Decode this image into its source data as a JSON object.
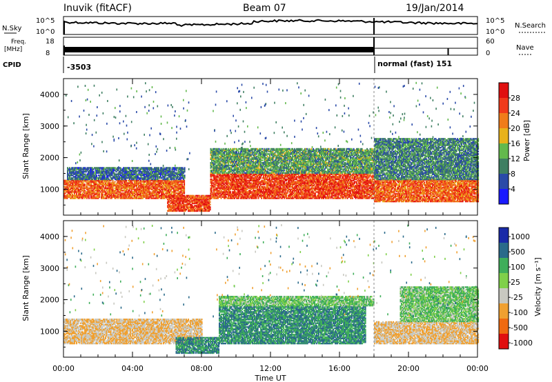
{
  "header": {
    "station": "Inuvik (fitACF)",
    "beam": "Beam 07",
    "date": "19/Jan/2014"
  },
  "top_panels": {
    "nsky_label": "N.Sky",
    "nsky_ticks": [
      "10^5",
      "10^0"
    ],
    "nsearch_label": "N.Search",
    "nsearch_ticks": [
      "10^5",
      "10^0"
    ],
    "freq_label_line1": "Freq.",
    "freq_label_line2": "[MHz]",
    "freq_ticks": [
      "18",
      "8"
    ],
    "nave_label": "Nave",
    "nave_ticks": [
      "60",
      "0"
    ],
    "cpid_label": "CPID",
    "cpid_left": "-3503",
    "cpid_right": "normal (fast) 151"
  },
  "x_axis": {
    "label": "Time UT",
    "ticks": [
      "00:00",
      "04:00",
      "08:00",
      "12:00",
      "16:00",
      "20:00",
      "00:00"
    ]
  },
  "chart_data": [
    {
      "type": "heatmap",
      "panel": "power",
      "ylabel": "Slant Range [km]",
      "y_ticks": [
        "1000",
        "2000",
        "3000",
        "4000"
      ],
      "ylim": [
        180,
        4500
      ],
      "xlim_hours": [
        0,
        24
      ],
      "colorbar_label": "Power [dB]",
      "colorbar_ticks": [
        "4",
        "8",
        "12",
        "16",
        "20",
        "24",
        "28"
      ],
      "colorbar_range": [
        0,
        32
      ],
      "colors": [
        "#1a1aff",
        "#2a4aa8",
        "#3f7f62",
        "#63b94d",
        "#e8b21a",
        "#f07c1a",
        "#f03a1a",
        "#e01010"
      ],
      "bands": [
        {
          "t0": 0.0,
          "t1": 7.0,
          "r0": 700,
          "r1": 1300,
          "value": 24
        },
        {
          "t0": 0.2,
          "t1": 7.0,
          "r0": 1300,
          "r1": 1700,
          "value": 8
        },
        {
          "t0": 6.0,
          "t1": 8.5,
          "r0": 300,
          "r1": 800,
          "value": 26
        },
        {
          "t0": 8.5,
          "t1": 18.0,
          "r0": 700,
          "r1": 1500,
          "value": 26
        },
        {
          "t0": 8.5,
          "t1": 18.0,
          "r0": 1500,
          "r1": 2300,
          "value": 12
        },
        {
          "t0": 18.0,
          "t1": 24.0,
          "r0": 600,
          "r1": 1300,
          "value": 24
        },
        {
          "t0": 18.0,
          "t1": 24.0,
          "r0": 1300,
          "r1": 2600,
          "value": 10
        }
      ]
    },
    {
      "type": "heatmap",
      "panel": "velocity",
      "ylabel": "Slant Range [km]",
      "y_ticks": [
        "1000",
        "2000",
        "3000",
        "4000"
      ],
      "ylim": [
        180,
        4500
      ],
      "xlim_hours": [
        0,
        24
      ],
      "colorbar_label": "Velocity [m s⁻¹]",
      "colorbar_ticks": [
        "1000",
        "500",
        "100",
        "25",
        "-25",
        "-100",
        "-500",
        "-1000"
      ],
      "colors": [
        "#1a2aa8",
        "#2a6a8a",
        "#3fae5a",
        "#7fd04a",
        "#c8c8c0",
        "#f0a030",
        "#f06a10",
        "#e01010"
      ],
      "bands": [
        {
          "t0": 0.0,
          "t1": 8.0,
          "r0": 600,
          "r1": 1400,
          "value": -100
        },
        {
          "t0": 6.5,
          "t1": 9.0,
          "r0": 300,
          "r1": 800,
          "value": 100
        },
        {
          "t0": 9.0,
          "t1": 17.5,
          "r0": 600,
          "r1": 1800,
          "value": 100
        },
        {
          "t0": 9.0,
          "t1": 18.0,
          "r0": 1800,
          "r1": 2100,
          "value": 25
        },
        {
          "t0": 18.0,
          "t1": 24.0,
          "r0": 600,
          "r1": 1300,
          "value": -100
        },
        {
          "t0": 19.5,
          "t1": 24.0,
          "r0": 1300,
          "r1": 2400,
          "value": 25
        }
      ]
    }
  ]
}
